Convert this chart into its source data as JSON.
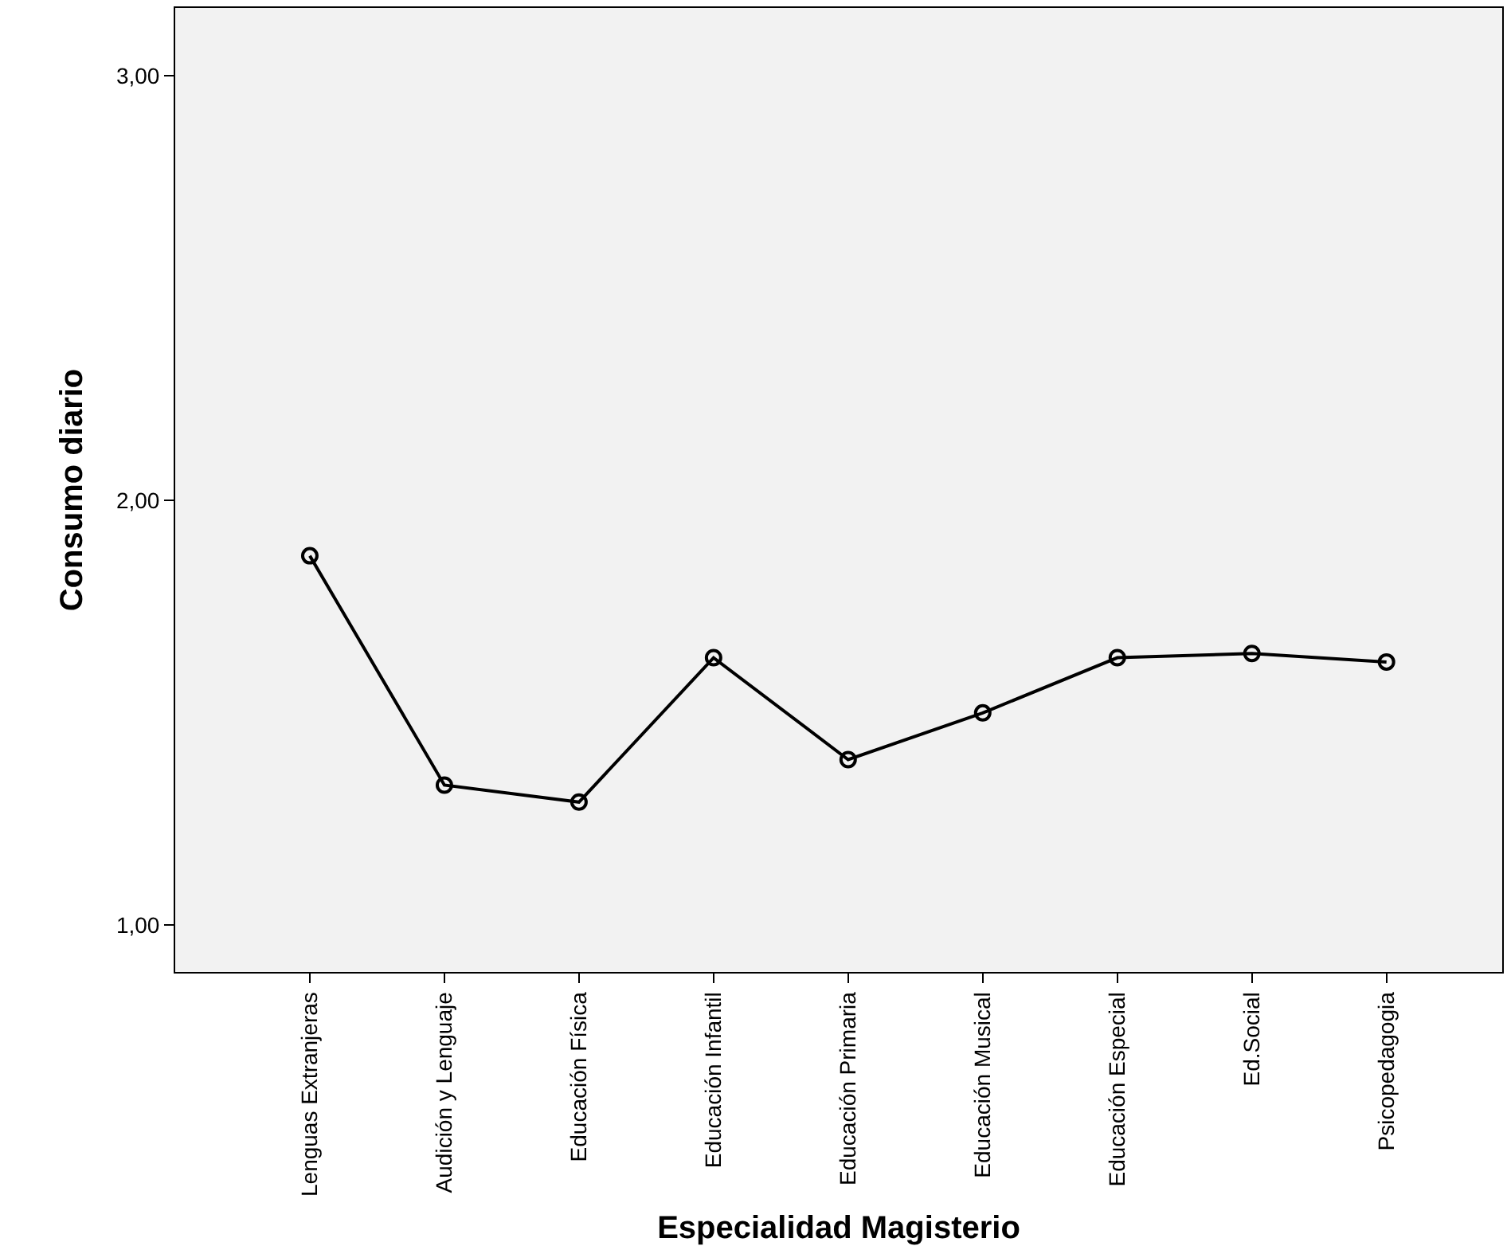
{
  "chart_data": {
    "type": "line",
    "xlabel": "Especialidad Magisterio",
    "ylabel": "Consumo diario",
    "categories": [
      "Lenguas Extranjeras",
      "Audición y Lenguaje",
      "Educación Física",
      "Educación Infantil",
      "Educación Primaria",
      "Educación Musical",
      "Educación Especial",
      "Ed.Social",
      "Psicopedagogia"
    ],
    "series": [
      {
        "color": "#000000",
        "values": [
          1.87,
          1.33,
          1.29,
          1.63,
          1.39,
          1.5,
          1.63,
          1.64,
          1.62
        ]
      }
    ],
    "ylim": [
      0.89,
      3.16
    ],
    "yticks": [
      {
        "value": 1,
        "label": "1,00"
      },
      {
        "value": 2,
        "label": "2,00"
      },
      {
        "value": 3,
        "label": "3,00"
      }
    ],
    "marker": "circle",
    "line_style": "solid",
    "grid": false
  }
}
